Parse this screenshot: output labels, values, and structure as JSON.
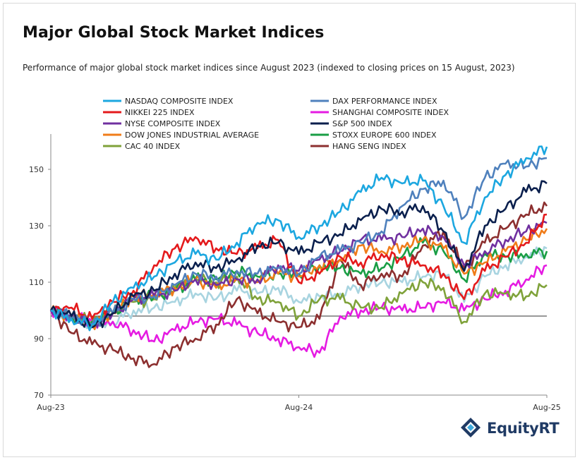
{
  "title": "Major Global Stock Market Indices",
  "subtitle": "Performance of major global stock market indices since August 2023 (indexed to closing prices on 15 August, 2023)",
  "logo": {
    "name": "EquityRT",
    "icon": "equityrt-logo-icon"
  },
  "chart_data": {
    "type": "line",
    "title": "Major Global Stock Market Indices",
    "subtitle": "Performance of major global stock market indices since August 2023 (indexed to closing prices on 15 August, 2023)",
    "xlabel": "",
    "ylabel": "",
    "x_ticks": [
      "Aug-23",
      "Aug-24",
      "Aug-25"
    ],
    "x": [
      "Aug-23",
      "Sep-23",
      "Oct-23",
      "Nov-23",
      "Dec-23",
      "Jan-24",
      "Feb-24",
      "Mar-24",
      "Apr-24",
      "May-24",
      "Jun-24",
      "Jul-24",
      "Aug-24",
      "Sep-24",
      "Oct-24",
      "Nov-24",
      "Dec-24",
      "Jan-25",
      "Feb-25",
      "Mar-25",
      "Apr-25",
      "May-25",
      "Jun-25",
      "Jul-25",
      "Aug-25"
    ],
    "ylim": [
      70,
      160
    ],
    "y_ticks": [
      70,
      90,
      110,
      130,
      150
    ],
    "reference_line": 98,
    "grid": false,
    "legend_position": "top",
    "series": [
      {
        "name": "NASDAQ COMPOSITE INDEX",
        "color": "#1ca7e0",
        "values": [
          100,
          97,
          95,
          103,
          108,
          112,
          117,
          120,
          118,
          124,
          131,
          132,
          126,
          130,
          135,
          142,
          147,
          145,
          146,
          137,
          124,
          140,
          148,
          154,
          158
        ]
      },
      {
        "name": "DAX PERFORMANCE INDEX",
        "color": "#4f81bd",
        "values": [
          100,
          98,
          95,
          99,
          104,
          105,
          109,
          113,
          112,
          114,
          113,
          115,
          113,
          119,
          121,
          124,
          128,
          137,
          143,
          146,
          133,
          147,
          152,
          151,
          154
        ]
      },
      {
        "name": "NIKKEI 225 INDEX",
        "color": "#e41a1c",
        "values": [
          100,
          101,
          97,
          103,
          107,
          116,
          122,
          126,
          122,
          120,
          122,
          125,
          110,
          113,
          119,
          117,
          120,
          118,
          116,
          113,
          104,
          114,
          119,
          124,
          134
        ]
      },
      {
        "name": "SHANGHAI COMPOSITE INDEX",
        "color": "#e51be2",
        "values": [
          100,
          98,
          96,
          96,
          93,
          89,
          93,
          96,
          97,
          95,
          92,
          90,
          87,
          85,
          98,
          100,
          101,
          100,
          101,
          103,
          100,
          104,
          107,
          111,
          116
        ]
      },
      {
        "name": "NYSE COMPOSITE INDEX",
        "color": "#7030a0",
        "values": [
          100,
          98,
          95,
          99,
          104,
          105,
          107,
          111,
          109,
          111,
          111,
          116,
          114,
          118,
          121,
          125,
          125,
          126,
          129,
          126,
          116,
          121,
          125,
          128,
          131
        ]
      },
      {
        "name": "S&P 500 INDEX",
        "color": "#0a1f4d",
        "values": [
          100,
          98,
          94,
          99,
          105,
          107,
          113,
          117,
          115,
          118,
          123,
          124,
          120,
          124,
          127,
          132,
          136,
          135,
          137,
          128,
          114,
          130,
          136,
          142,
          145
        ]
      },
      {
        "name": "DOW JONES INDUSTRIAL AVERAGE",
        "color": "#f07c1a",
        "values": [
          100,
          98,
          95,
          99,
          105,
          106,
          108,
          111,
          108,
          111,
          110,
          113,
          112,
          116,
          118,
          123,
          121,
          123,
          125,
          122,
          113,
          117,
          121,
          125,
          129
        ]
      },
      {
        "name": "STOXX EUROPE 600 INDEX",
        "color": "#1a9e45",
        "values": [
          100,
          98,
          96,
          99,
          104,
          105,
          107,
          111,
          111,
          114,
          112,
          113,
          113,
          116,
          115,
          113,
          115,
          119,
          124,
          121,
          111,
          120,
          119,
          120,
          121
        ]
      },
      {
        "name": "CAC 40 INDEX",
        "color": "#7fa23a",
        "values": [
          100,
          98,
          96,
          99,
          103,
          104,
          108,
          111,
          110,
          112,
          104,
          103,
          98,
          104,
          104,
          101,
          101,
          106,
          110,
          108,
          96,
          106,
          106,
          105,
          109
        ]
      },
      {
        "name": "HANG SENG INDEX",
        "color": "#8c2f2f",
        "values": [
          100,
          92,
          88,
          86,
          83,
          81,
          87,
          90,
          95,
          104,
          99,
          96,
          94,
          97,
          118,
          109,
          113,
          112,
          123,
          128,
          115,
          124,
          129,
          134,
          137
        ]
      },
      {
        "name": "",
        "color": "#a8d4e0",
        "values": [
          100,
          97,
          95,
          96,
          100,
          101,
          103,
          106,
          104,
          107,
          106,
          108,
          103,
          105,
          106,
          109,
          110,
          110,
          112,
          113,
          103,
          112,
          116,
          119,
          122
        ]
      }
    ]
  }
}
